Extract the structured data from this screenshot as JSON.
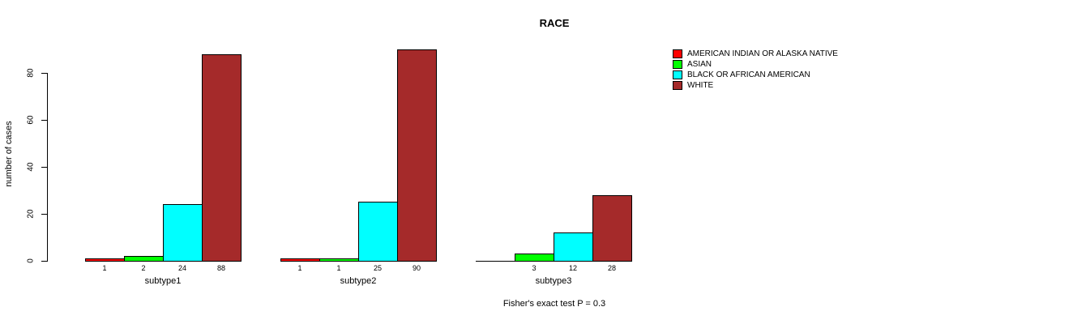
{
  "chart_data": {
    "type": "bar",
    "title": "RACE",
    "ylabel": "number of cases",
    "xlabel": "",
    "yticks": [
      0,
      20,
      40,
      60,
      80
    ],
    "ylim": [
      0,
      90
    ],
    "grid": false,
    "legend_position": "right",
    "categories": [
      "subtype1",
      "subtype2",
      "subtype3"
    ],
    "series": [
      {
        "name": "AMERICAN INDIAN OR ALASKA NATIVE",
        "color": "#ff0000",
        "values": [
          1,
          1,
          0
        ]
      },
      {
        "name": "ASIAN",
        "color": "#00ff00",
        "values": [
          2,
          1,
          3
        ]
      },
      {
        "name": "BLACK OR AFRICAN AMERICAN",
        "color": "#00ffff",
        "values": [
          24,
          25,
          12
        ]
      },
      {
        "name": "WHITE",
        "color": "#a52a2a",
        "values": [
          88,
          90,
          28
        ]
      }
    ],
    "bar_labels": [
      [
        "1",
        "2",
        "24",
        "88"
      ],
      [
        "1",
        "1",
        "25",
        "90"
      ],
      [
        "",
        "3",
        "12",
        "28"
      ]
    ],
    "annotation": "Fisher's exact test P = 0.3",
    "colors": {
      "axis": "#000000",
      "background": "#ffffff"
    }
  }
}
